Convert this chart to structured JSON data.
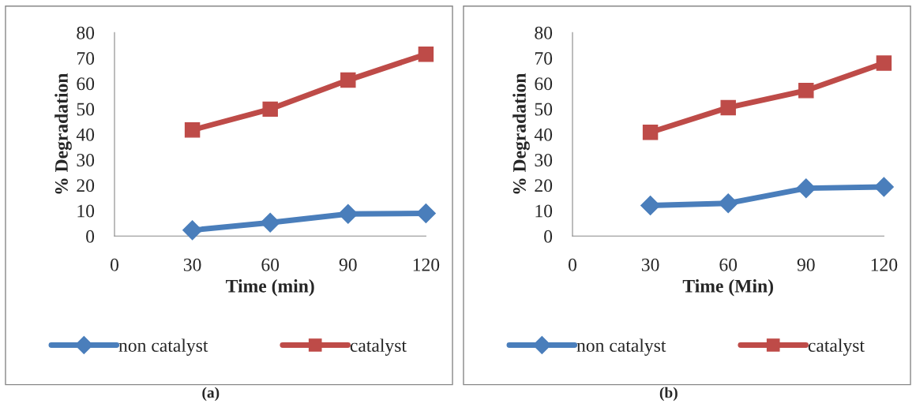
{
  "chart_data": [
    {
      "type": "line",
      "xlabel": "Time (min)",
      "ylabel": "% Degradation",
      "x": [
        30,
        60,
        90,
        120
      ],
      "xlim": [
        0,
        120
      ],
      "xticks": [
        0,
        30,
        60,
        90,
        120
      ],
      "ylim": [
        0,
        80
      ],
      "yticks": [
        0,
        10,
        20,
        30,
        40,
        50,
        60,
        70,
        80
      ],
      "legend": "bottom",
      "annotations": [
        "(a)"
      ],
      "series": [
        {
          "name": "non catalyst",
          "color": "#4a7ebb",
          "marker": "diamond",
          "values": [
            2.3,
            5.3,
            8.7,
            8.9
          ]
        },
        {
          "name": "catalyst",
          "color": "#be4b48",
          "marker": "square",
          "values": [
            41.7,
            49.9,
            61.3,
            71.5
          ]
        }
      ]
    },
    {
      "type": "line",
      "xlabel": "Time (Min)",
      "ylabel": "% Degradation",
      "x": [
        30,
        60,
        90,
        120
      ],
      "xlim": [
        0,
        120
      ],
      "xticks": [
        0,
        30,
        60,
        90,
        120
      ],
      "ylim": [
        0,
        80
      ],
      "yticks": [
        0,
        10,
        20,
        30,
        40,
        50,
        60,
        70,
        80
      ],
      "legend": "bottom",
      "annotations": [
        "(b)"
      ],
      "series": [
        {
          "name": "non catalyst",
          "color": "#4a7ebb",
          "marker": "diamond",
          "values": [
            12.0,
            12.9,
            18.8,
            19.3
          ]
        },
        {
          "name": "catalyst",
          "color": "#be4b48",
          "marker": "square",
          "values": [
            40.8,
            50.5,
            57.2,
            68.0
          ]
        }
      ]
    }
  ]
}
